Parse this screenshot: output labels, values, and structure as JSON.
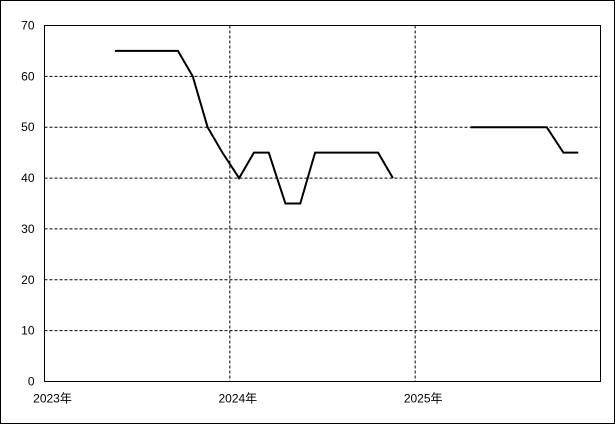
{
  "chart_data": {
    "type": "line",
    "x": [
      2023.38,
      2023.72,
      2023.8,
      2023.88,
      2023.96,
      2024.05,
      2024.13,
      2024.21,
      2024.3,
      2024.38,
      2024.46,
      2024.8,
      2024.88,
      2025.0,
      2025.3,
      2025.71,
      2025.8,
      2025.88
    ],
    "series": [
      {
        "color": "#000000",
        "values": [
          65,
          65,
          60,
          50,
          45,
          40,
          45,
          45,
          35,
          35,
          45,
          45,
          40,
          null,
          50,
          50,
          45,
          45
        ]
      }
    ],
    "xlim": [
      2023,
      2026
    ],
    "xticks": [
      {
        "value": 2023,
        "label": "2023年"
      },
      {
        "value": 2024,
        "label": "2024年"
      },
      {
        "value": 2025,
        "label": "2025年"
      }
    ],
    "ylim": [
      0,
      70
    ],
    "yticks": [
      0,
      10,
      20,
      30,
      40,
      50,
      60,
      70
    ],
    "grid": true
  }
}
